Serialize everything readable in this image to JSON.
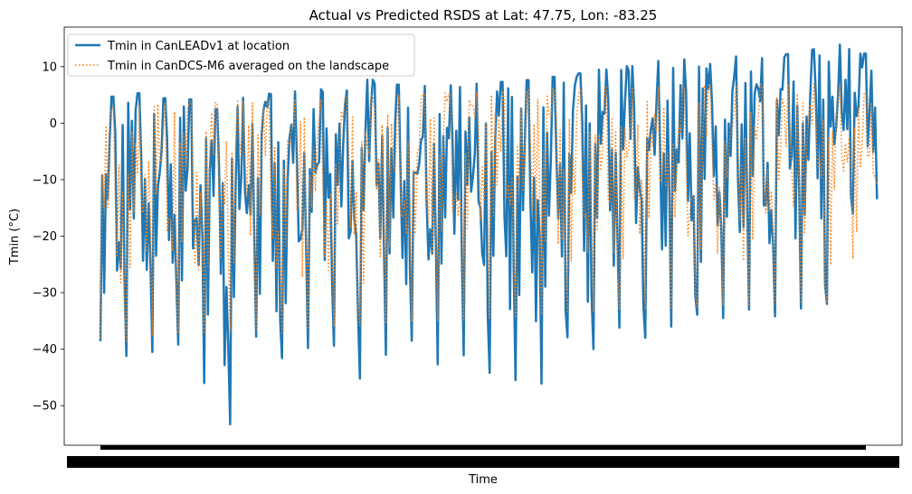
{
  "chart_data": {
    "type": "line",
    "title": "Actual vs Predicted RSDS at Lat: 47.75, Lon: -83.25",
    "xlabel": "Time",
    "ylabel": "Tmin (°C)",
    "ylim": [
      -57.0,
      17.0
    ],
    "yticks": [
      10,
      0,
      -10,
      -20,
      -30,
      -40,
      -50
    ],
    "grid": false,
    "legend_position": "upper-left",
    "x_tick_labels_note": "dense overlapping daily date labels rendered as a solid black band",
    "series": [
      {
        "name": "Tmin in CanLEADv1 at location",
        "color": "#1f77b4",
        "style": "solid",
        "line_width": 2.5,
        "y_range": [
          -53.3,
          13.9
        ],
        "seasonal_peaks": [
          4.7,
          5.3,
          4.4,
          4.2,
          2.5,
          4.5,
          5.2,
          5.6,
          6.0,
          5.8,
          7.7,
          6.8,
          6.6,
          6.7,
          7.0,
          7.3,
          7.6,
          8.2,
          8.8,
          9.5,
          10.1,
          11.0,
          11.3,
          10.5,
          11.8,
          11.5,
          12.2,
          13.1,
          13.9,
          12.3
        ],
        "seasonal_troughs": [
          -38.6,
          -41.2,
          -40.5,
          -39.2,
          -46.0,
          -53.3,
          -37.8,
          -41.6,
          -39.8,
          -39.4,
          -45.2,
          -41.0,
          -38.5,
          -42.7,
          -41.1,
          -44.2,
          -45.5,
          -46.1,
          -37.9,
          -40.0,
          -36.2,
          -38.0,
          -36.0,
          -33.9,
          -34.5,
          -33.0,
          -34.2,
          -32.8,
          -32.0,
          -16.0
        ]
      },
      {
        "name": "Tmin in CanDCS-M6 averaged on the landscape",
        "color": "#ff7f0e",
        "style": "dotted",
        "line_width": 1.5,
        "y_range": [
          -38.5,
          7.0
        ],
        "seasonal_peaks": [
          3.0,
          3.2,
          3.5,
          3.8,
          3.6,
          3.9,
          4.1,
          4.3,
          4.2,
          4.6,
          4.8,
          5.0,
          5.1,
          5.3,
          5.5,
          5.7,
          5.8,
          6.0,
          6.1,
          6.3,
          6.4,
          6.5,
          6.6,
          6.7,
          6.8,
          6.8,
          6.9,
          7.0,
          7.0,
          5.3
        ],
        "seasonal_troughs": [
          -38.0,
          -38.5,
          -37.5,
          -37.2,
          -37.0,
          -36.8,
          -36.5,
          -37.4,
          -36.2,
          -36.0,
          -35.8,
          -35.5,
          -35.2,
          -35.0,
          -34.8,
          -34.5,
          -34.2,
          -33.9,
          -33.6,
          -33.4,
          -33.1,
          -32.9,
          -32.7,
          -32.5,
          -32.3,
          -32.1,
          -32.0,
          -31.9,
          -31.8,
          -24.0
        ]
      }
    ]
  }
}
